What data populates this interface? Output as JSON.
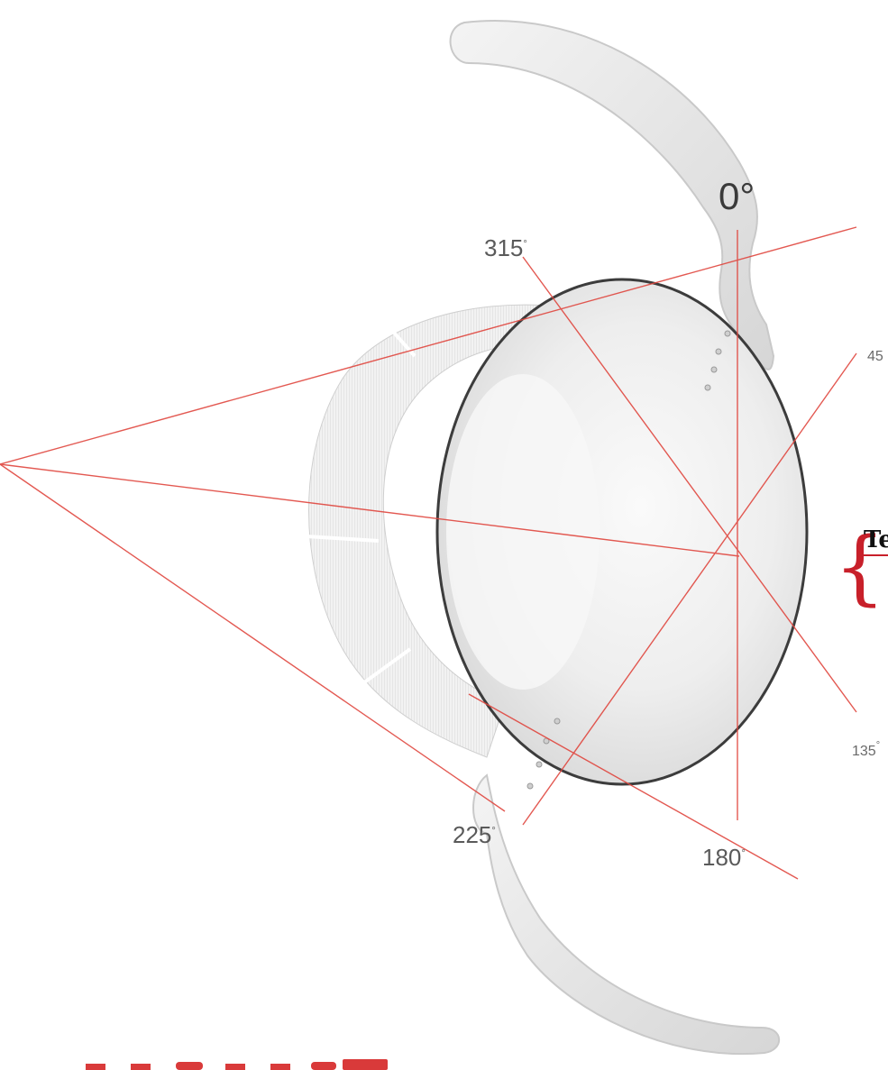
{
  "colors": {
    "red_line": "#e0473f",
    "lens_fill": "#ececec",
    "lens_outline": "#3c3c3c",
    "accent": "#c8202a"
  },
  "angles": {
    "a0": "0°",
    "a45": "45",
    "a135": "135",
    "a180": "180",
    "a225": "225",
    "a315": "315"
  },
  "note": {
    "text": "Te"
  },
  "logo": {
    "icon": "brand-logo-icon"
  }
}
